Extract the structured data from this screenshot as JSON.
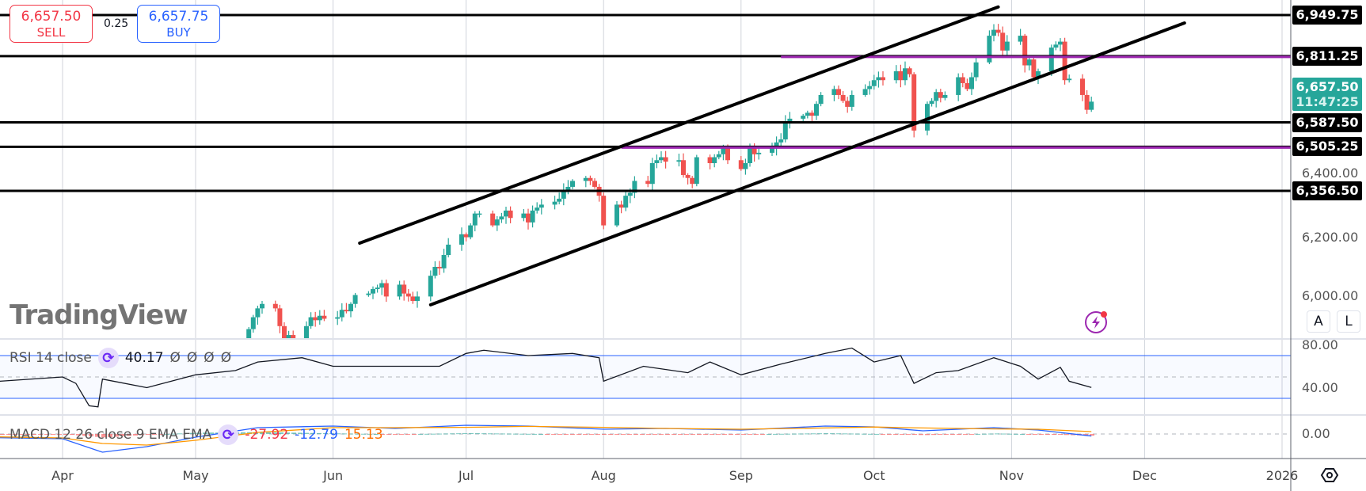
{
  "trade": {
    "sell_price": "6,657.50",
    "sell_label": "SELL",
    "spread": "0.25",
    "buy_price": "6,657.75",
    "buy_label": "BUY"
  },
  "price_axis": {
    "ticks": [
      "6,400.00",
      "6,200.00",
      "6,000.00"
    ],
    "tick_values": [
      6400,
      6200,
      6000
    ],
    "level_tags": [
      {
        "label": "6,949.75",
        "value": 6949.75
      },
      {
        "label": "6,811.25",
        "value": 6811.25
      },
      {
        "label": "6,587.50",
        "value": 6587.5
      },
      {
        "label": "6,505.25",
        "value": 6505.25
      },
      {
        "label": "6,356.50",
        "value": 6356.5
      }
    ],
    "current": {
      "price": "6,657.50",
      "countdown": "11:47:25",
      "value": 6657.5,
      "color": "#26a69a"
    },
    "auto_button": "A",
    "log_button": "L"
  },
  "time_axis": {
    "labels": [
      {
        "label": "Apr",
        "date": "2025-04-01"
      },
      {
        "label": "May",
        "date": "2025-05-01"
      },
      {
        "label": "Jun",
        "date": "2025-06-01"
      },
      {
        "label": "Jul",
        "date": "2025-07-01"
      },
      {
        "label": "Aug",
        "date": "2025-08-01"
      },
      {
        "label": "Sep",
        "date": "2025-09-01"
      },
      {
        "label": "Oct",
        "date": "2025-10-01"
      },
      {
        "label": "Nov",
        "date": "2025-11-01"
      },
      {
        "label": "Dec",
        "date": "2025-12-01"
      },
      {
        "label": "2026",
        "date": "2026-01-01"
      }
    ]
  },
  "drawings": {
    "horizontal_lines": [
      {
        "value": 6949.75,
        "color": "#000000"
      },
      {
        "value": 6811.25,
        "color": "#000000"
      },
      {
        "value": 6587.5,
        "color": "#000000"
      },
      {
        "value": 6505.25,
        "color": "#000000"
      },
      {
        "value": 6356.5,
        "color": "#000000"
      }
    ],
    "purple_rays": [
      {
        "value": 6811.25,
        "from": "2025-09-10",
        "color": "#9c27b0"
      },
      {
        "value": 6505.25,
        "from": "2025-08-05",
        "color": "#9c27b0"
      }
    ],
    "channel": [
      {
        "p1": [
          "2025-06-07",
          6180
        ],
        "p2": [
          "2025-10-29",
          6977
        ]
      },
      {
        "p1": [
          "2025-06-23",
          5972
        ],
        "p2": [
          "2025-12-10",
          6923
        ]
      }
    ]
  },
  "colors": {
    "up": "#26a69a",
    "down": "#f0524f",
    "rsi_band": "#2962ff",
    "macd": "#2962ff",
    "signal": "#ff9800"
  },
  "chart_data": {
    "type": "candlestick",
    "weeks": [
      {
        "week": "2025-05-12",
        "closes": [
          5850,
          5890,
          5930,
          5960,
          5975
        ]
      },
      {
        "week": "2025-05-19",
        "closes": [
          5960,
          5900,
          5855,
          5870,
          5850
        ]
      },
      {
        "week": "2025-05-26",
        "closes": [
          5900,
          5930,
          5920,
          5935,
          5925
        ]
      },
      {
        "week": "2025-06-02",
        "closes": [
          5930,
          5955,
          5950,
          5975,
          6005
        ]
      },
      {
        "week": "2025-06-09",
        "closes": [
          6010,
          6025,
          6030,
          6045,
          6000
        ]
      },
      {
        "week": "2025-06-16",
        "closes": [
          6040,
          6010,
          6000,
          5985,
          6000
        ]
      },
      {
        "week": "2025-06-23",
        "closes": [
          6070,
          6100,
          6095,
          6140,
          6175
        ]
      },
      {
        "week": "2025-06-30",
        "closes": [
          6210,
          6200,
          6240,
          6280,
          6280
        ]
      },
      {
        "week": "2025-07-07",
        "closes": [
          6240,
          6260,
          6270,
          6290,
          6265
        ]
      },
      {
        "week": "2025-07-14",
        "closes": [
          6280,
          6250,
          6290,
          6300,
          6310
        ]
      },
      {
        "week": "2025-07-21",
        "closes": [
          6320,
          6330,
          6360,
          6370,
          6390
        ]
      },
      {
        "week": "2025-07-28",
        "closes": [
          6400,
          6390,
          6370,
          6340,
          6240
        ]
      },
      {
        "week": "2025-08-04",
        "closes": [
          6310,
          6300,
          6340,
          6350,
          6390
        ]
      },
      {
        "week": "2025-08-11",
        "closes": [
          6380,
          6450,
          6460,
          6470,
          6455
        ]
      },
      {
        "week": "2025-08-18",
        "closes": [
          6460,
          6410,
          6400,
          6380,
          6470
        ]
      },
      {
        "week": "2025-08-25",
        "closes": [
          6450,
          6470,
          6480,
          6500,
          6460
        ]
      },
      {
        "week": "2025-09-01",
        "closes": [
          6430,
          6450,
          6500,
          6480,
          6485
        ]
      },
      {
        "week": "2025-09-08",
        "closes": [
          6500,
          6520,
          6530,
          6590,
          6600
        ]
      },
      {
        "week": "2025-09-15",
        "closes": [
          6610,
          6620,
          6610,
          6650,
          6680
        ]
      },
      {
        "week": "2025-09-22",
        "closes": [
          6700,
          6680,
          6660,
          6640,
          6680
        ]
      },
      {
        "week": "2025-09-29",
        "closes": [
          6700,
          6710,
          6730,
          6740,
          6730
        ]
      },
      {
        "week": "2025-10-06",
        "closes": [
          6760,
          6730,
          6770,
          6750,
          6560
        ]
      },
      {
        "week": "2025-10-13",
        "closes": [
          6650,
          6660,
          6690,
          6670,
          6680
        ]
      },
      {
        "week": "2025-10-20",
        "closes": [
          6740,
          6720,
          6700,
          6740,
          6790
        ]
      },
      {
        "week": "2025-10-27",
        "closes": [
          6880,
          6900,
          6890,
          6830,
          6860
        ]
      },
      {
        "week": "2025-11-03",
        "closes": [
          6880,
          6780,
          6800,
          6740,
          6760
        ]
      },
      {
        "week": "2025-11-10",
        "closes": [
          6840,
          6850,
          6860,
          6730,
          6735
        ]
      },
      {
        "week": "2025-11-17",
        "closes": [
          6680,
          6630,
          6657.5
        ]
      }
    ],
    "price_range": [
      5800,
      7000
    ]
  },
  "rsi": {
    "title": "RSI 14 close",
    "value": "40.17",
    "placeholders": [
      "Ø",
      "Ø",
      "Ø",
      "Ø"
    ],
    "axis_ticks": [
      "80.00",
      "40.00"
    ],
    "bands": [
      70,
      30
    ],
    "mid": 50,
    "points": [
      [
        "2025-03-24",
        44
      ],
      [
        "2025-04-01",
        50
      ],
      [
        "2025-04-04",
        44
      ],
      [
        "2025-04-07",
        23
      ],
      [
        "2025-04-09",
        22
      ],
      [
        "2025-04-10",
        48
      ],
      [
        "2025-04-20",
        40
      ],
      [
        "2025-05-01",
        52
      ],
      [
        "2025-05-10",
        56
      ],
      [
        "2025-05-15",
        64
      ],
      [
        "2025-05-25",
        68
      ],
      [
        "2025-06-01",
        60
      ],
      [
        "2025-06-15",
        60
      ],
      [
        "2025-06-25",
        60
      ],
      [
        "2025-07-01",
        72
      ],
      [
        "2025-07-05",
        75
      ],
      [
        "2025-07-15",
        70
      ],
      [
        "2025-07-25",
        72
      ],
      [
        "2025-07-31",
        68
      ],
      [
        "2025-08-01",
        46
      ],
      [
        "2025-08-10",
        60
      ],
      [
        "2025-08-20",
        54
      ],
      [
        "2025-08-25",
        64
      ],
      [
        "2025-09-01",
        52
      ],
      [
        "2025-09-10",
        62
      ],
      [
        "2025-09-20",
        72
      ],
      [
        "2025-09-26",
        77
      ],
      [
        "2025-10-01",
        64
      ],
      [
        "2025-10-07",
        70
      ],
      [
        "2025-10-10",
        44
      ],
      [
        "2025-10-15",
        54
      ],
      [
        "2025-10-20",
        56
      ],
      [
        "2025-10-28",
        68
      ],
      [
        "2025-11-03",
        60
      ],
      [
        "2025-11-07",
        48
      ],
      [
        "2025-11-12",
        59
      ],
      [
        "2025-11-14",
        46
      ],
      [
        "2025-11-19",
        40.17
      ]
    ]
  },
  "macd": {
    "title": "MACD 12 26 close 9 EMA EMA",
    "histogram": "-27.92",
    "macd_value": "-12.79",
    "signal_value": "15.13",
    "axis_ticks": [
      "0.00"
    ],
    "points": [
      [
        "2025-03-24",
        -20,
        -15
      ],
      [
        "2025-04-01",
        -30,
        -25
      ],
      [
        "2025-04-10",
        -115,
        -60
      ],
      [
        "2025-04-20",
        -80,
        -70
      ],
      [
        "2025-05-01",
        -20,
        -40
      ],
      [
        "2025-05-15",
        40,
        10
      ],
      [
        "2025-06-01",
        50,
        40
      ],
      [
        "2025-06-15",
        35,
        40
      ],
      [
        "2025-07-01",
        55,
        42
      ],
      [
        "2025-07-15",
        50,
        48
      ],
      [
        "2025-08-01",
        30,
        42
      ],
      [
        "2025-08-15",
        35,
        35
      ],
      [
        "2025-09-01",
        25,
        30
      ],
      [
        "2025-09-20",
        50,
        38
      ],
      [
        "2025-10-01",
        45,
        44
      ],
      [
        "2025-10-12",
        20,
        38
      ],
      [
        "2025-10-28",
        40,
        32
      ],
      [
        "2025-11-07",
        25,
        30
      ],
      [
        "2025-11-19",
        -12.79,
        15.13
      ]
    ]
  },
  "watermark": "TradingView"
}
